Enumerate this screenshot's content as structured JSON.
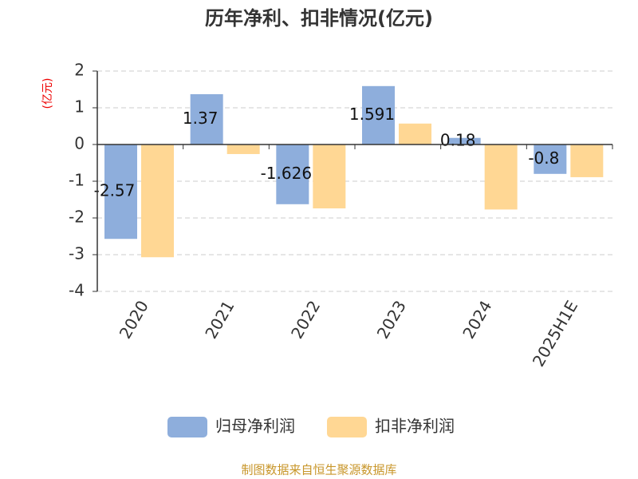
{
  "chart_data": {
    "type": "bar",
    "title": "历年净利、扣非情况(亿元)",
    "y_axis_label": "(亿元)",
    "categories": [
      "2020",
      "2021",
      "2022",
      "2023",
      "2024",
      "2025H1E"
    ],
    "series": [
      {
        "name": "归母净利润",
        "color": "#8eaedc",
        "values": [
          -2.57,
          1.37,
          -1.626,
          1.591,
          0.18,
          -0.8
        ]
      },
      {
        "name": "扣非净利润",
        "color": "#ffd794",
        "values": [
          -3.07,
          -0.26,
          -1.74,
          0.57,
          -1.77,
          -0.89
        ]
      }
    ],
    "ylim": [
      -4,
      2
    ],
    "yticks": [
      -4,
      -3,
      -2,
      -1,
      0,
      1,
      2
    ],
    "grid": true,
    "legend": "bottom",
    "source": "制图数据来自恒生聚源数据库"
  }
}
